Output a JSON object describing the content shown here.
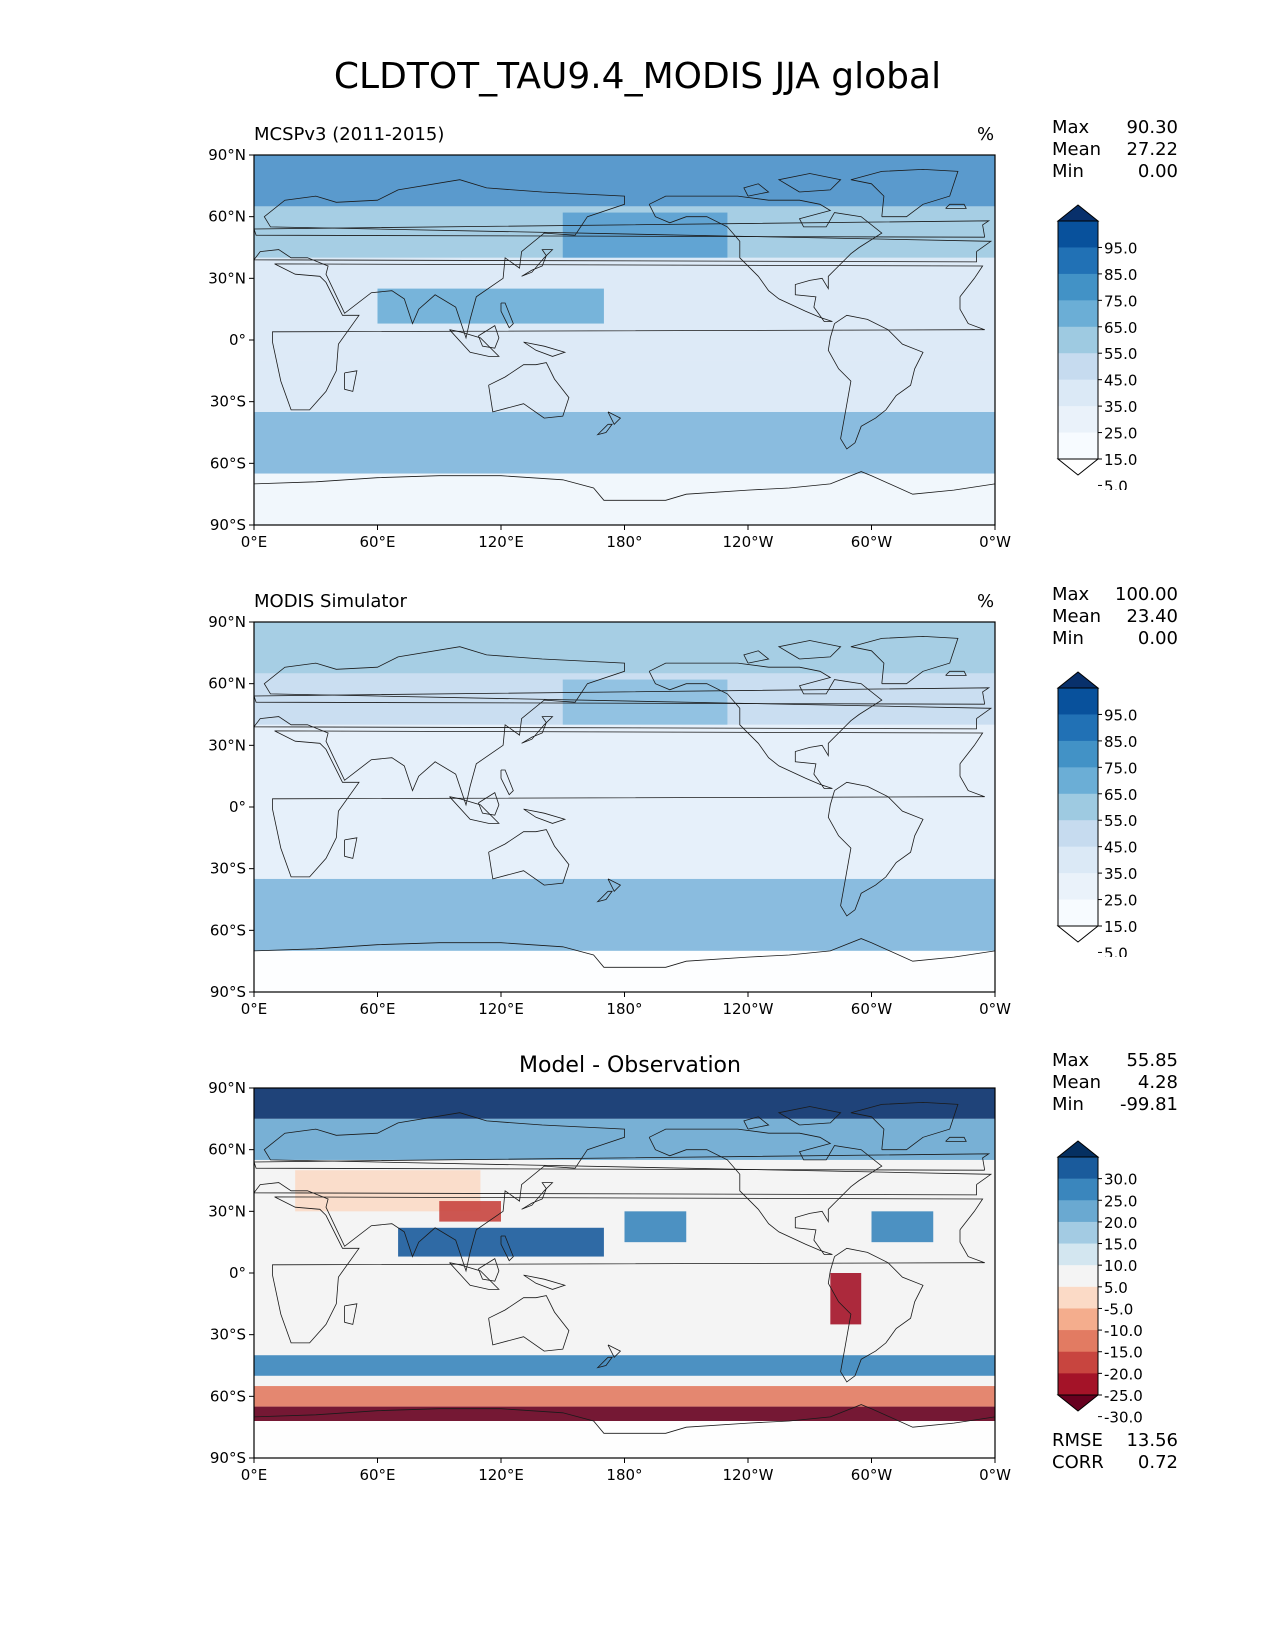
{
  "title": "CLDTOT_TAU9.4_MODIS JJA global",
  "axes": {
    "lat_ticks": [
      "90°N",
      "60°N",
      "30°N",
      "0°",
      "30°S",
      "60°S",
      "90°S"
    ],
    "lon_ticks": [
      "0°E",
      "60°E",
      "120°E",
      "180°",
      "120°W",
      "60°W",
      "0°W"
    ]
  },
  "panels": [
    {
      "label": "MCSPv3 (2011-2015)",
      "unit": "%",
      "stats": {
        "max_label": "Max",
        "max": "90.30",
        "mean_label": "Mean",
        "mean": "27.22",
        "min_label": "Min",
        "min": "0.00"
      },
      "colorbar_labels": [
        "95.0",
        "85.0",
        "75.0",
        "65.0",
        "55.0",
        "45.0",
        "35.0",
        "25.0",
        "15.0",
        "5.0"
      ],
      "colorbar_colors": [
        "#08306b",
        "#08519c",
        "#2171b5",
        "#4292c6",
        "#6baed6",
        "#9ecae1",
        "#c6dbef",
        "#dbe9f6",
        "#eaf2fa",
        "#f7fbff",
        "#ffffff"
      ]
    },
    {
      "label": "MODIS Simulator",
      "unit": "%",
      "stats": {
        "max_label": "Max",
        "max": "100.00",
        "mean_label": "Mean",
        "mean": "23.40",
        "min_label": "Min",
        "min": "0.00"
      },
      "colorbar_labels": [
        "95.0",
        "85.0",
        "75.0",
        "65.0",
        "55.0",
        "45.0",
        "35.0",
        "25.0",
        "15.0",
        "5.0"
      ],
      "colorbar_colors": [
        "#08306b",
        "#08519c",
        "#2171b5",
        "#4292c6",
        "#6baed6",
        "#9ecae1",
        "#c6dbef",
        "#dbe9f6",
        "#eaf2fa",
        "#f7fbff",
        "#ffffff"
      ]
    },
    {
      "label": "Model - Observation",
      "unit": "",
      "stats": {
        "max_label": "Max",
        "max": "55.85",
        "mean_label": "Mean",
        "mean": "4.28",
        "min_label": "Min",
        "min": "-99.81"
      },
      "colorbar_labels": [
        "30.0",
        "25.0",
        "20.0",
        "15.0",
        "10.0",
        "5.0",
        "-5.0",
        "-10.0",
        "-15.0",
        "-20.0",
        "-25.0",
        "-30.0"
      ],
      "colorbar_colors": [
        "#053061",
        "#1a5b9c",
        "#3a86bd",
        "#6aa9d1",
        "#a3cbe3",
        "#d3e6f0",
        "#f4f4f4",
        "#fbdac6",
        "#f4ad8d",
        "#e27b62",
        "#c8453f",
        "#a41328",
        "#67001f"
      ],
      "rmse_label": "RMSE",
      "rmse": "13.56",
      "corr_label": "CORR",
      "corr": "0.72"
    }
  ]
}
